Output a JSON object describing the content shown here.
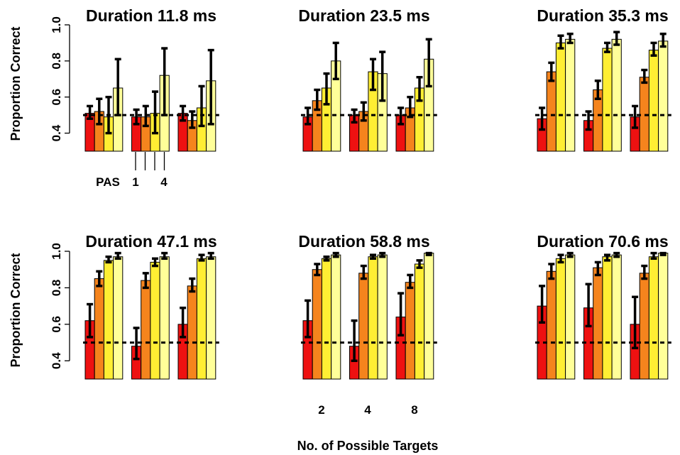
{
  "figure": {
    "ylabel": "Proportion Correct",
    "xlabel": "No. of Possible Targets",
    "x_tick_labels": [
      "2",
      "4",
      "8"
    ],
    "pas_key": {
      "label": "PAS",
      "first": "1",
      "last": "4"
    }
  },
  "chart_data": {
    "type": "bar",
    "yticks": [
      0.4,
      0.6,
      0.8,
      1.0
    ],
    "ylim": [
      0.3,
      1.0
    ],
    "chance_level": 0.5,
    "group_categories": [
      "2",
      "4",
      "8"
    ],
    "series_categories": [
      "1",
      "2",
      "3",
      "4"
    ],
    "series_colors": [
      "#ee1111",
      "#f5841d",
      "#ffee33",
      "#ffff99"
    ],
    "panels": [
      {
        "title": "Duration 11.8 ms",
        "groups": [
          {
            "values": [
              0.51,
              0.52,
              0.49,
              0.65
            ],
            "low": [
              0.48,
              0.45,
              0.4,
              0.5
            ],
            "high": [
              0.55,
              0.59,
              0.6,
              0.81
            ]
          },
          {
            "values": [
              0.49,
              0.49,
              0.51,
              0.72
            ],
            "low": [
              0.45,
              0.44,
              0.4,
              0.5
            ],
            "high": [
              0.53,
              0.55,
              0.63,
              0.87
            ]
          },
          {
            "values": [
              0.51,
              0.47,
              0.54,
              0.69
            ],
            "low": [
              0.47,
              0.43,
              0.44,
              0.45
            ],
            "high": [
              0.55,
              0.52,
              0.66,
              0.86
            ]
          }
        ]
      },
      {
        "title": "Duration 23.5 ms",
        "groups": [
          {
            "values": [
              0.49,
              0.58,
              0.65,
              0.8
            ],
            "low": [
              0.45,
              0.53,
              0.56,
              0.7
            ],
            "high": [
              0.54,
              0.64,
              0.73,
              0.9
            ]
          },
          {
            "values": [
              0.5,
              0.52,
              0.74,
              0.73
            ],
            "low": [
              0.46,
              0.47,
              0.64,
              0.58
            ],
            "high": [
              0.53,
              0.57,
              0.81,
              0.85
            ]
          },
          {
            "values": [
              0.5,
              0.54,
              0.65,
              0.81
            ],
            "low": [
              0.45,
              0.49,
              0.58,
              0.66
            ],
            "high": [
              0.54,
              0.6,
              0.71,
              0.92
            ]
          }
        ]
      },
      {
        "title": "Duration 35.3 ms",
        "groups": [
          {
            "values": [
              0.48,
              0.74,
              0.9,
              0.92
            ],
            "low": [
              0.42,
              0.69,
              0.87,
              0.9
            ],
            "high": [
              0.54,
              0.79,
              0.94,
              0.95
            ]
          },
          {
            "values": [
              0.47,
              0.64,
              0.87,
              0.92
            ],
            "low": [
              0.42,
              0.59,
              0.85,
              0.89
            ],
            "high": [
              0.52,
              0.69,
              0.9,
              0.96
            ]
          },
          {
            "values": [
              0.49,
              0.71,
              0.86,
              0.91
            ],
            "low": [
              0.43,
              0.68,
              0.83,
              0.88
            ],
            "high": [
              0.55,
              0.75,
              0.9,
              0.95
            ]
          }
        ]
      },
      {
        "title": "Duration 47.1 ms",
        "groups": [
          {
            "values": [
              0.62,
              0.85,
              0.95,
              0.97
            ],
            "low": [
              0.53,
              0.81,
              0.94,
              0.96
            ],
            "high": [
              0.71,
              0.89,
              0.97,
              0.99
            ]
          },
          {
            "values": [
              0.48,
              0.84,
              0.94,
              0.97
            ],
            "low": [
              0.41,
              0.8,
              0.92,
              0.96
            ],
            "high": [
              0.58,
              0.88,
              0.96,
              0.99
            ]
          },
          {
            "values": [
              0.6,
              0.81,
              0.96,
              0.97
            ],
            "low": [
              0.53,
              0.78,
              0.95,
              0.96
            ],
            "high": [
              0.69,
              0.85,
              0.98,
              0.99
            ]
          }
        ]
      },
      {
        "title": "Duration 58.8 ms",
        "groups": [
          {
            "values": [
              0.62,
              0.9,
              0.96,
              0.98
            ],
            "low": [
              0.53,
              0.87,
              0.95,
              0.97
            ],
            "high": [
              0.73,
              0.93,
              0.97,
              0.99
            ]
          },
          {
            "values": [
              0.48,
              0.88,
              0.97,
              0.98
            ],
            "low": [
              0.4,
              0.85,
              0.96,
              0.97
            ],
            "high": [
              0.62,
              0.92,
              0.98,
              0.99
            ]
          },
          {
            "values": [
              0.64,
              0.83,
              0.93,
              0.99
            ],
            "low": [
              0.54,
              0.8,
              0.91,
              0.98
            ],
            "high": [
              0.77,
              0.87,
              0.95,
              0.99
            ]
          }
        ]
      },
      {
        "title": "Duration 70.6 ms",
        "groups": [
          {
            "values": [
              0.7,
              0.89,
              0.96,
              0.98
            ],
            "low": [
              0.61,
              0.85,
              0.94,
              0.97
            ],
            "high": [
              0.81,
              0.93,
              0.98,
              0.99
            ]
          },
          {
            "values": [
              0.69,
              0.91,
              0.97,
              0.98
            ],
            "low": [
              0.59,
              0.87,
              0.95,
              0.97
            ],
            "high": [
              0.82,
              0.94,
              0.98,
              0.99
            ]
          },
          {
            "values": [
              0.6,
              0.88,
              0.97,
              0.99
            ],
            "low": [
              0.47,
              0.85,
              0.96,
              0.98
            ],
            "high": [
              0.75,
              0.92,
              0.99,
              0.99
            ]
          }
        ]
      }
    ]
  }
}
